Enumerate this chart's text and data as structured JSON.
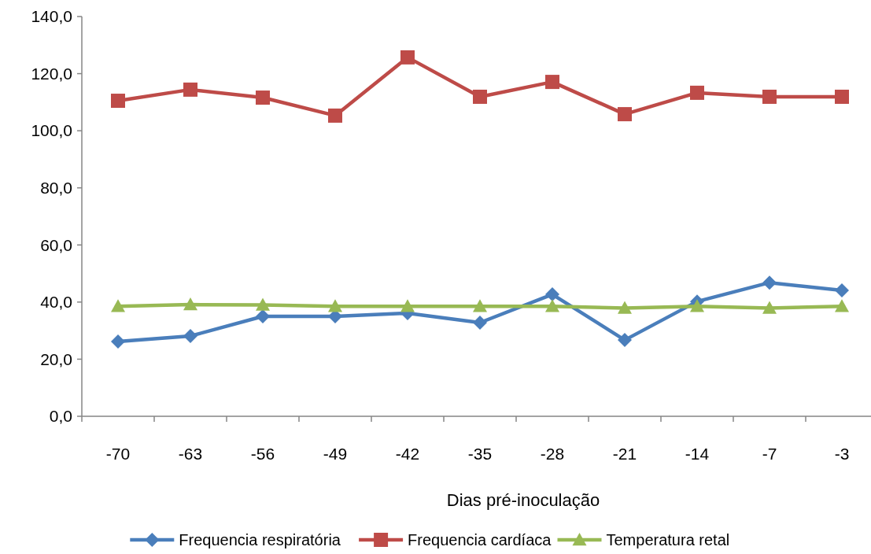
{
  "chart_data": {
    "type": "line",
    "xlabel": "Dias pré-inoculação",
    "categories": [
      "-70",
      "-63",
      "-56",
      "-49",
      "-42",
      "-35",
      "-28",
      "-21",
      "-14",
      "-7",
      "-3"
    ],
    "series": [
      {
        "name": "Frequencia respiratória",
        "color": "#4a7ebb",
        "marker": "diamond",
        "values": [
          26.2,
          28.1,
          35.0,
          35.0,
          36.1,
          32.8,
          42.7,
          26.7,
          40.2,
          46.8,
          44.1
        ]
      },
      {
        "name": "Frequencia cardíaca",
        "color": "#be4b48",
        "marker": "square",
        "values": [
          110.5,
          114.4,
          111.6,
          105.3,
          125.7,
          111.9,
          117.1,
          105.8,
          113.3,
          111.9,
          111.9
        ]
      },
      {
        "name": "Temperatura retal",
        "color": "#98b954",
        "marker": "triangle",
        "values": [
          38.5,
          39.1,
          39.0,
          38.5,
          38.5,
          38.5,
          38.5,
          37.9,
          38.5,
          37.9,
          38.5
        ]
      }
    ],
    "ylim": [
      0,
      140
    ],
    "yticks": [
      {
        "value": 0,
        "label": "0,0"
      },
      {
        "value": 20,
        "label": "20,0"
      },
      {
        "value": 40,
        "label": "40,0"
      },
      {
        "value": 60,
        "label": "60,0"
      },
      {
        "value": 80,
        "label": "80,0"
      },
      {
        "value": 100,
        "label": "100,0"
      },
      {
        "value": 120,
        "label": "120,0"
      },
      {
        "value": 140,
        "label": "140,0"
      }
    ],
    "grid": false,
    "legend": "bottom"
  }
}
